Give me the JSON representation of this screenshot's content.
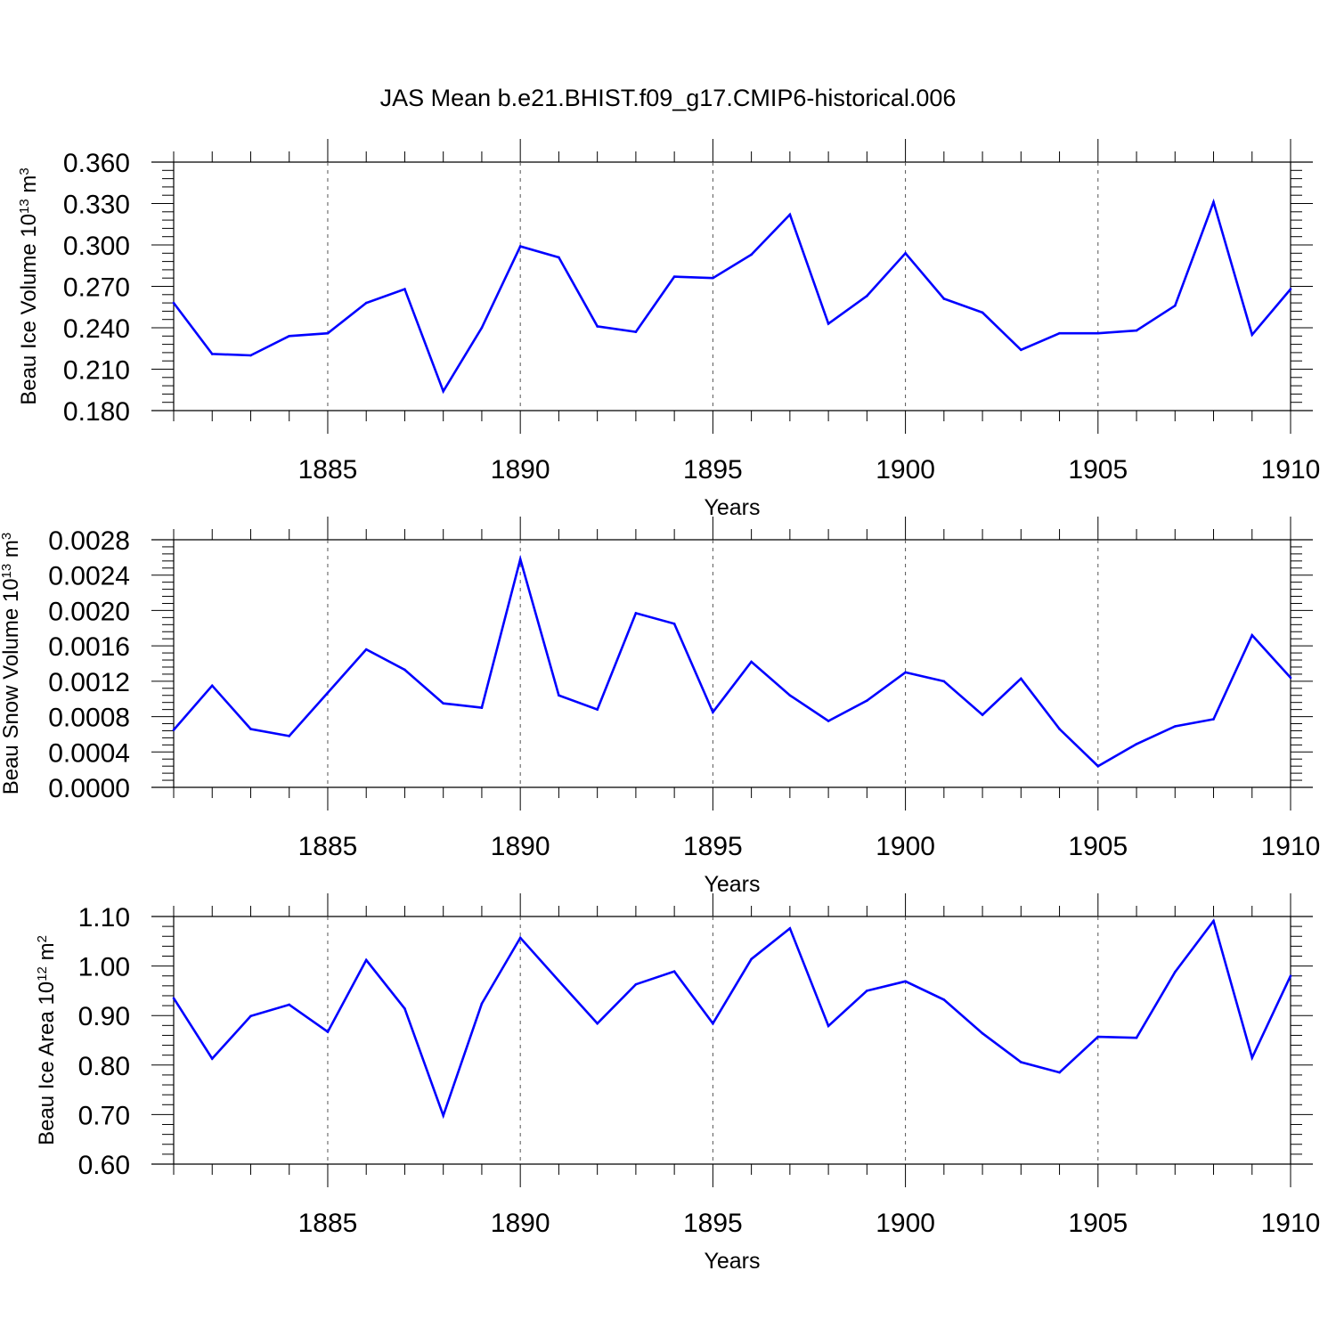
{
  "figure": {
    "title": "JAS Mean b.e21.BHIST.f09_g17.CMIP6-historical.006",
    "series_color": "#0000ff",
    "grid_color": "#555555"
  },
  "chart_data": [
    {
      "type": "line",
      "xlabel": "Years",
      "ylabel": {
        "text": "Beau Ice Volume 10",
        "exponent": "13",
        "unit": " m",
        "unit_exponent": "3"
      },
      "xlim": [
        1881,
        1910
      ],
      "ylim": [
        0.18,
        0.36
      ],
      "x_ticks": [
        "1885",
        "1890",
        "1895",
        "1900",
        "1905",
        "1910"
      ],
      "y_ticks": [
        "0.180",
        "0.210",
        "0.240",
        "0.270",
        "0.300",
        "0.330",
        "0.360"
      ],
      "x": [
        1881,
        1882,
        1883,
        1884,
        1885,
        1886,
        1887,
        1888,
        1889,
        1890,
        1891,
        1892,
        1893,
        1894,
        1895,
        1896,
        1897,
        1898,
        1899,
        1900,
        1901,
        1902,
        1903,
        1904,
        1905,
        1906,
        1907,
        1908,
        1909,
        1910
      ],
      "values": [
        0.258,
        0.221,
        0.22,
        0.234,
        0.236,
        0.258,
        0.268,
        0.194,
        0.24,
        0.299,
        0.291,
        0.241,
        0.237,
        0.277,
        0.276,
        0.293,
        0.322,
        0.243,
        0.263,
        0.294,
        0.261,
        0.251,
        0.224,
        0.236,
        0.236,
        0.238,
        0.256,
        0.331,
        0.235,
        0.268
      ]
    },
    {
      "type": "line",
      "xlabel": "Years",
      "ylabel": {
        "text": "Beau Snow Volume 10",
        "exponent": "13",
        "unit": " m",
        "unit_exponent": "3"
      },
      "xlim": [
        1881,
        1910
      ],
      "ylim": [
        0.0,
        0.0028
      ],
      "x_ticks": [
        "1885",
        "1890",
        "1895",
        "1900",
        "1905",
        "1910"
      ],
      "y_ticks": [
        "0.0000",
        "0.0004",
        "0.0008",
        "0.0012",
        "0.0016",
        "0.0020",
        "0.0024",
        "0.0028"
      ],
      "x": [
        1881,
        1882,
        1883,
        1884,
        1885,
        1886,
        1887,
        1888,
        1889,
        1890,
        1891,
        1892,
        1893,
        1894,
        1895,
        1896,
        1897,
        1898,
        1899,
        1900,
        1901,
        1902,
        1903,
        1904,
        1905,
        1906,
        1907,
        1908,
        1909,
        1910
      ],
      "values": [
        0.00065,
        0.00115,
        0.00066,
        0.00058,
        0.00107,
        0.00156,
        0.00133,
        0.00095,
        0.0009,
        0.00258,
        0.00104,
        0.00088,
        0.00197,
        0.00185,
        0.00085,
        0.00142,
        0.00104,
        0.00075,
        0.00098,
        0.0013,
        0.0012,
        0.00082,
        0.00123,
        0.00066,
        0.00024,
        0.00049,
        0.00069,
        0.00077,
        0.00172,
        0.00124
      ]
    },
    {
      "type": "line",
      "xlabel": "Years",
      "ylabel": {
        "text": "Beau Ice Area 10",
        "exponent": "12",
        "unit": " m",
        "unit_exponent": "2"
      },
      "xlim": [
        1881,
        1910
      ],
      "ylim": [
        0.6,
        1.1
      ],
      "x_ticks": [
        "1885",
        "1890",
        "1895",
        "1900",
        "1905",
        "1910"
      ],
      "y_ticks": [
        "0.60",
        "0.70",
        "0.80",
        "0.90",
        "1.00",
        "1.10"
      ],
      "x": [
        1881,
        1882,
        1883,
        1884,
        1885,
        1886,
        1887,
        1888,
        1889,
        1890,
        1891,
        1892,
        1893,
        1894,
        1895,
        1896,
        1897,
        1898,
        1899,
        1900,
        1901,
        1902,
        1903,
        1904,
        1905,
        1906,
        1907,
        1908,
        1909,
        1910
      ],
      "values": [
        0.935,
        0.813,
        0.899,
        0.922,
        0.867,
        1.012,
        0.914,
        0.698,
        0.924,
        1.057,
        0.97,
        0.884,
        0.963,
        0.989,
        0.884,
        1.014,
        1.076,
        0.879,
        0.95,
        0.969,
        0.932,
        0.864,
        0.806,
        0.785,
        0.857,
        0.855,
        0.988,
        1.091,
        0.815,
        0.98
      ]
    }
  ]
}
